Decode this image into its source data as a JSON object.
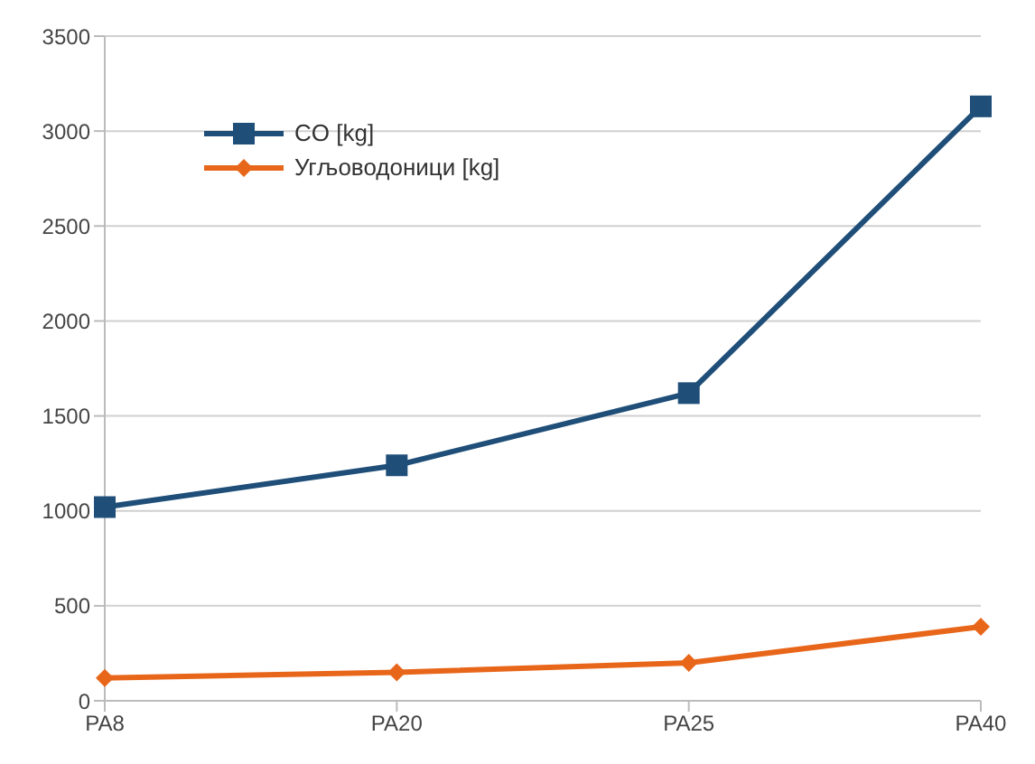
{
  "chart_data": {
    "type": "line",
    "categories": [
      "PA8",
      "PA20",
      "PA25",
      "PA40"
    ],
    "series": [
      {
        "name": "CO [kg]",
        "color": "#1f4e79",
        "marker": "square",
        "values": [
          1020,
          1240,
          1620,
          3130
        ]
      },
      {
        "name": "Угљоводоници [kg]",
        "color": "#e8661a",
        "marker": "diamond",
        "values": [
          120,
          150,
          200,
          390
        ]
      }
    ],
    "ylim": [
      0,
      3500
    ],
    "yticks": [
      0,
      500,
      1000,
      1500,
      2000,
      2500,
      3000,
      3500
    ],
    "grid": "y",
    "legend": "top left"
  }
}
